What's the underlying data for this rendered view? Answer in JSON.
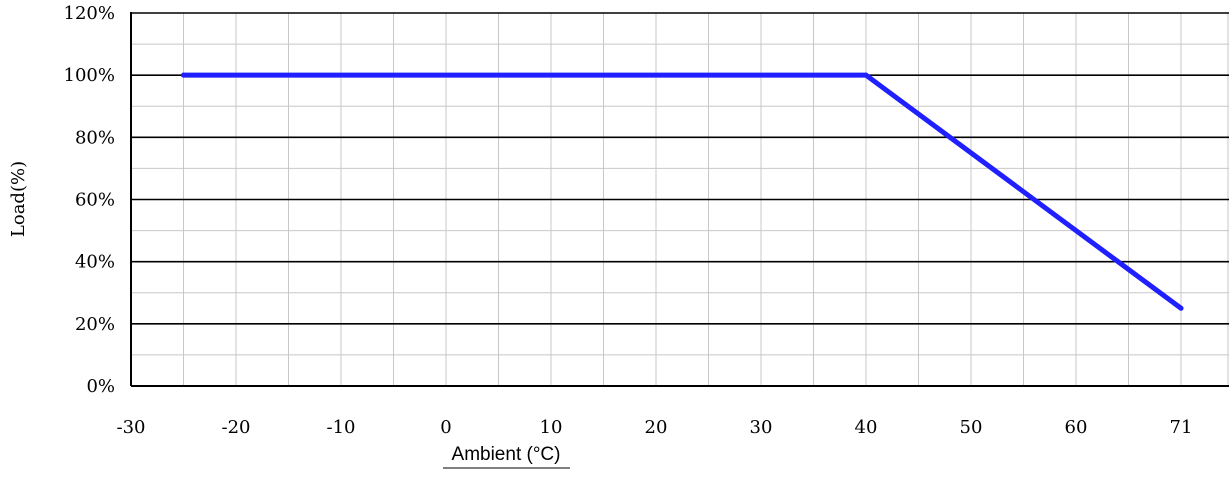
{
  "chart_data": {
    "type": "line",
    "title": "",
    "xlabel": "Ambient (°C)",
    "ylabel": "Load(%)",
    "xlim": [
      -30,
      75
    ],
    "ylim": [
      0,
      120
    ],
    "x_ticks": [
      {
        "value": -30,
        "label": "-30"
      },
      {
        "value": -20,
        "label": "-20"
      },
      {
        "value": -10,
        "label": "-10"
      },
      {
        "value": 0,
        "label": "0"
      },
      {
        "value": 10,
        "label": "10"
      },
      {
        "value": 20,
        "label": "20"
      },
      {
        "value": 30,
        "label": "30"
      },
      {
        "value": 40,
        "label": "40"
      },
      {
        "value": 50,
        "label": "50"
      },
      {
        "value": 60,
        "label": "60"
      },
      {
        "value": 71,
        "label": "71"
      }
    ],
    "y_ticks": [
      {
        "value": 0,
        "label": "0%"
      },
      {
        "value": 20,
        "label": "20%"
      },
      {
        "value": 40,
        "label": "40%"
      },
      {
        "value": 60,
        "label": "60%"
      },
      {
        "value": 80,
        "label": "80%"
      },
      {
        "value": 100,
        "label": "100%"
      },
      {
        "value": 120,
        "label": "120%"
      }
    ],
    "grid": true,
    "legend": "none",
    "series": [
      {
        "color": "#1f1fff",
        "points": [
          {
            "x": -25,
            "y": 100
          },
          {
            "x": 40,
            "y": 100
          },
          {
            "x": 71,
            "y": 25
          }
        ]
      }
    ]
  }
}
